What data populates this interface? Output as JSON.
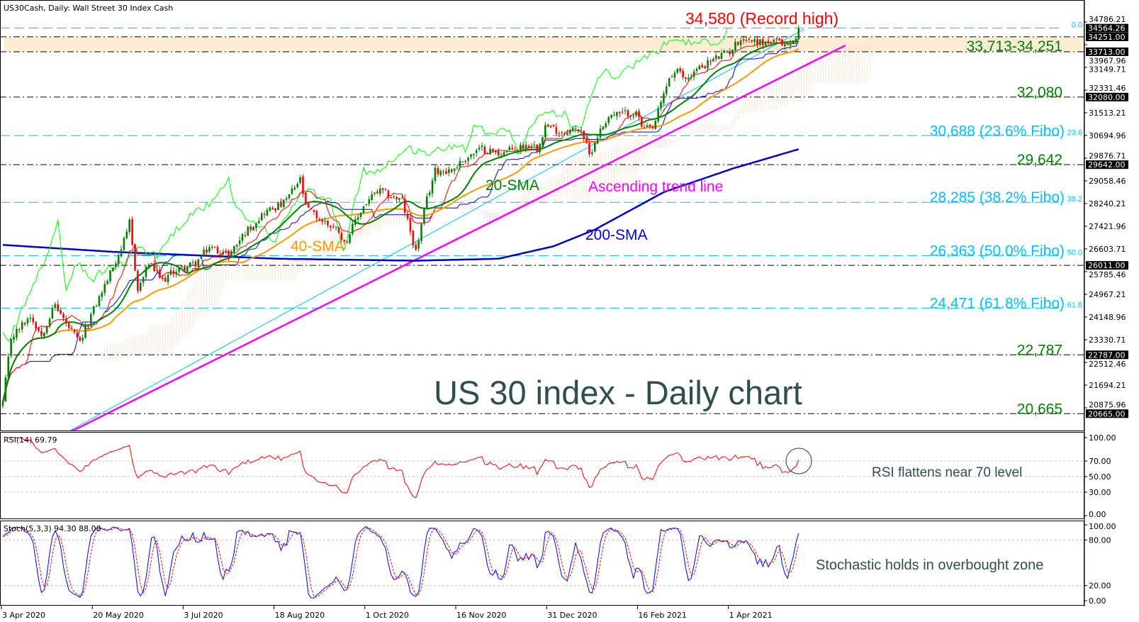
{
  "header": {
    "title": "US30Cash, Daily:  Wall Street 30 Index Cash"
  },
  "chart_data": {
    "type": "candlestick",
    "title": "US 30 index - Daily chart",
    "bars": 290,
    "ylim": [
      20060,
      35580
    ],
    "x_ticks": [
      {
        "bar": 0,
        "label": "3 Apr 2020"
      },
      {
        "bar": 33,
        "label": "20 May 2020"
      },
      {
        "bar": 66,
        "label": "3 Jul 2020"
      },
      {
        "bar": 99,
        "label": "18 Aug 2020"
      },
      {
        "bar": 132,
        "label": "1 Oct 2020"
      },
      {
        "bar": 165,
        "label": "16 Nov 2020"
      },
      {
        "bar": 198,
        "label": "31 Dec 2020"
      },
      {
        "bar": 231,
        "label": "16 Feb 2021"
      },
      {
        "bar": 264,
        "label": "1 Apr 2021"
      }
    ],
    "price_ticks": [
      "34786.21",
      "33967.96",
      "33149.71",
      "32331.46",
      "31513.21",
      "30694.96",
      "29876.71",
      "29058.46",
      "28240.21",
      "27421.96",
      "26603.71",
      "25785.46",
      "24967.21",
      "24148.96",
      "23330.71",
      "22512.46",
      "21694.21",
      "20875.96"
    ],
    "close_keypoints": [
      [
        0,
        21050
      ],
      [
        3,
        23400
      ],
      [
        10,
        24200
      ],
      [
        14,
        23500
      ],
      [
        19,
        24600
      ],
      [
        23,
        23900
      ],
      [
        28,
        23200
      ],
      [
        32,
        24200
      ],
      [
        38,
        25500
      ],
      [
        45,
        27100
      ],
      [
        46,
        27570
      ],
      [
        49,
        25100
      ],
      [
        53,
        26100
      ],
      [
        58,
        25450
      ],
      [
        62,
        25800
      ],
      [
        70,
        26080
      ],
      [
        75,
        26670
      ],
      [
        82,
        26380
      ],
      [
        88,
        27200
      ],
      [
        95,
        27930
      ],
      [
        102,
        28250
      ],
      [
        108,
        29100
      ],
      [
        110,
        28130
      ],
      [
        115,
        27670
      ],
      [
        122,
        27290
      ],
      [
        124,
        26800
      ],
      [
        131,
        28150
      ],
      [
        135,
        28590
      ],
      [
        137,
        28680
      ],
      [
        145,
        28330
      ],
      [
        150,
        26500
      ],
      [
        154,
        28390
      ],
      [
        157,
        29420
      ],
      [
        163,
        29440
      ],
      [
        168,
        29870
      ],
      [
        174,
        30220
      ],
      [
        180,
        30050
      ],
      [
        185,
        30180
      ],
      [
        192,
        30400
      ],
      [
        194,
        30230
      ],
      [
        197,
        31050
      ],
      [
        203,
        30810
      ],
      [
        210,
        30940
      ],
      [
        212,
        30300
      ],
      [
        213,
        29980
      ],
      [
        216,
        30700
      ],
      [
        220,
        31400
      ],
      [
        228,
        31520
      ],
      [
        231,
        31400
      ],
      [
        232,
        30930
      ],
      [
        236,
        30920
      ],
      [
        242,
        32780
      ],
      [
        245,
        33000
      ],
      [
        248,
        32730
      ],
      [
        252,
        33070
      ],
      [
        258,
        33430
      ],
      [
        264,
        33730
      ],
      [
        268,
        34200
      ],
      [
        276,
        34040
      ],
      [
        281,
        34060
      ],
      [
        285,
        33950
      ],
      [
        287,
        34050
      ],
      [
        289,
        34564
      ]
    ],
    "sma200_keypoints": [
      [
        0,
        26750
      ],
      [
        40,
        26500
      ],
      [
        100,
        26250
      ],
      [
        150,
        26180
      ],
      [
        180,
        26250
      ],
      [
        200,
        26700
      ],
      [
        215,
        27300
      ],
      [
        240,
        28650
      ],
      [
        265,
        29500
      ],
      [
        289,
        30200
      ]
    ],
    "indicators": {
      "sma_fast": 20,
      "sma_mid": 40,
      "ichimoku": [
        9,
        26,
        52
      ],
      "rsi_period": 14,
      "stoch": [
        5,
        3,
        3
      ]
    },
    "trend_lines": [
      {
        "name": "ascending-trend-line",
        "from": [
          25,
          20032
        ],
        "to": [
          306,
          33943
        ],
        "color": "#ff00ff"
      },
      {
        "name": "channel-line",
        "from": [
          24,
          20032
        ],
        "to": [
          291,
          34530
        ],
        "color": "#00bfff"
      }
    ],
    "zone": {
      "from": 33713,
      "to": 34251,
      "label": "33,713-34,251"
    },
    "levels": [
      {
        "value": 34251,
        "box": "34251.00",
        "label": ""
      },
      {
        "value": 33713,
        "box": "33713.00",
        "label": ""
      },
      {
        "value": 32080,
        "box": "32080.00",
        "label": "32,080"
      },
      {
        "value": 29642,
        "box": "29642.00",
        "label": "29,642"
      },
      {
        "value": 26011,
        "box": "26011.00",
        "label": ""
      },
      {
        "value": 22787,
        "box": "22787.00",
        "label": "22,787"
      },
      {
        "value": 20665,
        "box": "20665.00",
        "label": "20,665"
      }
    ],
    "fibo": [
      {
        "value": 34564.26,
        "pct": "0.0",
        "label": "",
        "box": "34564.26"
      },
      {
        "value": 30688,
        "pct": "23.6",
        "label": "30,688 (23.6% Fibo)"
      },
      {
        "value": 28285,
        "pct": "38.2",
        "label": "28,285 (38.2% Fibo)"
      },
      {
        "value": 26363,
        "pct": "50.0",
        "label": "26,363 (50.0% Fibo)"
      },
      {
        "value": 24471,
        "pct": "61.8",
        "label": "24,471 (61.8% Fibo)"
      }
    ],
    "annotations": {
      "record_high": "34,580 (Record high)",
      "sma20": "20-SMA",
      "sma40": "40-SMA",
      "sma200": "200-SMA",
      "trend": "Ascending trend line",
      "rsi_note": "RSI flattens near 70 level",
      "stoch_note": "Stochastic holds in overbought zone"
    },
    "rsi": {
      "label": "RSI(14) 69.79",
      "ticks": [
        100,
        70,
        50,
        30,
        0
      ],
      "tick_labels": [
        "100.00",
        "70.00",
        "50.00",
        "30.00",
        "0.00"
      ],
      "levels": [
        70,
        50,
        30
      ]
    },
    "stoch": {
      "label": "Stoch(5,3,3) 94.30 88.08",
      "ticks": [
        100,
        80,
        20,
        0
      ],
      "tick_labels": [
        "100.00",
        "80.00",
        "20.00",
        "0.00"
      ],
      "levels": [
        80,
        20
      ]
    },
    "colors": {
      "bull": "#008000",
      "bear": "#ff0000",
      "sma20": "#008000",
      "sma40": "#ff9900",
      "sma200": "#0000cd",
      "tenkan": "#ff0000",
      "kijun": "#0000ff",
      "chikou": "#00ff00",
      "cloud_up": "#f4b982",
      "cloud_down": "#ff69b4",
      "fibo": "#00bfff",
      "level_label": "#008000",
      "zone": "#fdedd5",
      "title": "#2f4f4f"
    }
  }
}
